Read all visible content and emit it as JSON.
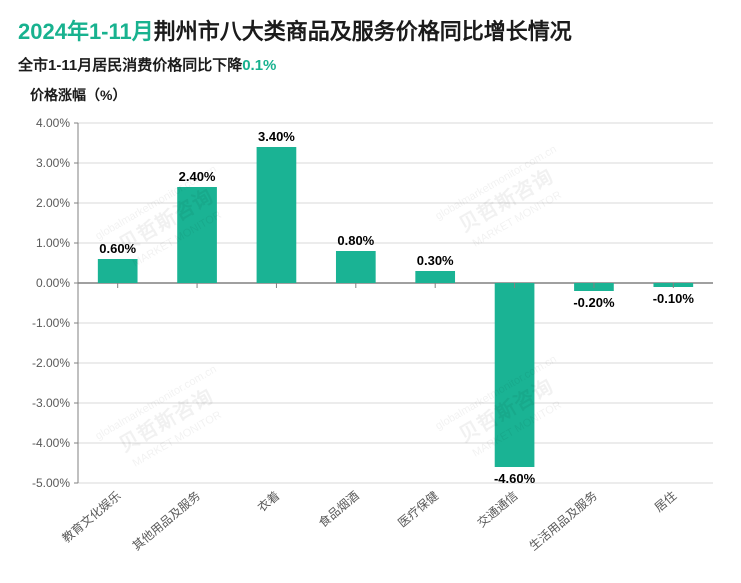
{
  "title": {
    "accent": "2024年1-11月",
    "main": "荆州市八大类商品及服务价格同比增长情况"
  },
  "subtitle": {
    "main": "全市1-11月居民消费价格同比下降",
    "accent": "0.1%"
  },
  "chart": {
    "type": "bar",
    "ylabel": "价格涨幅（%）",
    "ylim": [
      -5,
      4
    ],
    "ytick_step": 1,
    "categories": [
      "教育文化娱乐",
      "其他用品及服务",
      "衣着",
      "食品烟酒",
      "医疗保健",
      "交通通信",
      "生活用品及服务",
      "居住"
    ],
    "values": [
      0.6,
      2.4,
      3.4,
      0.8,
      0.3,
      -4.6,
      -0.2,
      -0.1
    ],
    "value_labels": [
      "0.60%",
      "2.40%",
      "3.40%",
      "0.80%",
      "0.30%",
      "-4.60%",
      "-0.20%",
      "-0.10%"
    ],
    "bar_color": "#1ab394",
    "background_color": "#ffffff",
    "grid_color": "#d9d9d9",
    "axis_color": "#808080",
    "zero_line_color": "#808080",
    "tick_font_color": "#595959",
    "value_font_color": "#000000",
    "ytick_fontsize": 12,
    "xtick_fontsize": 12,
    "value_fontsize": 13,
    "bar_width_ratio": 0.5
  },
  "watermark": {
    "brand_cn": "贝哲斯咨询",
    "brand_en": "MARKET MONITOR",
    "url": "globalmarketmonitor.com.cn"
  }
}
